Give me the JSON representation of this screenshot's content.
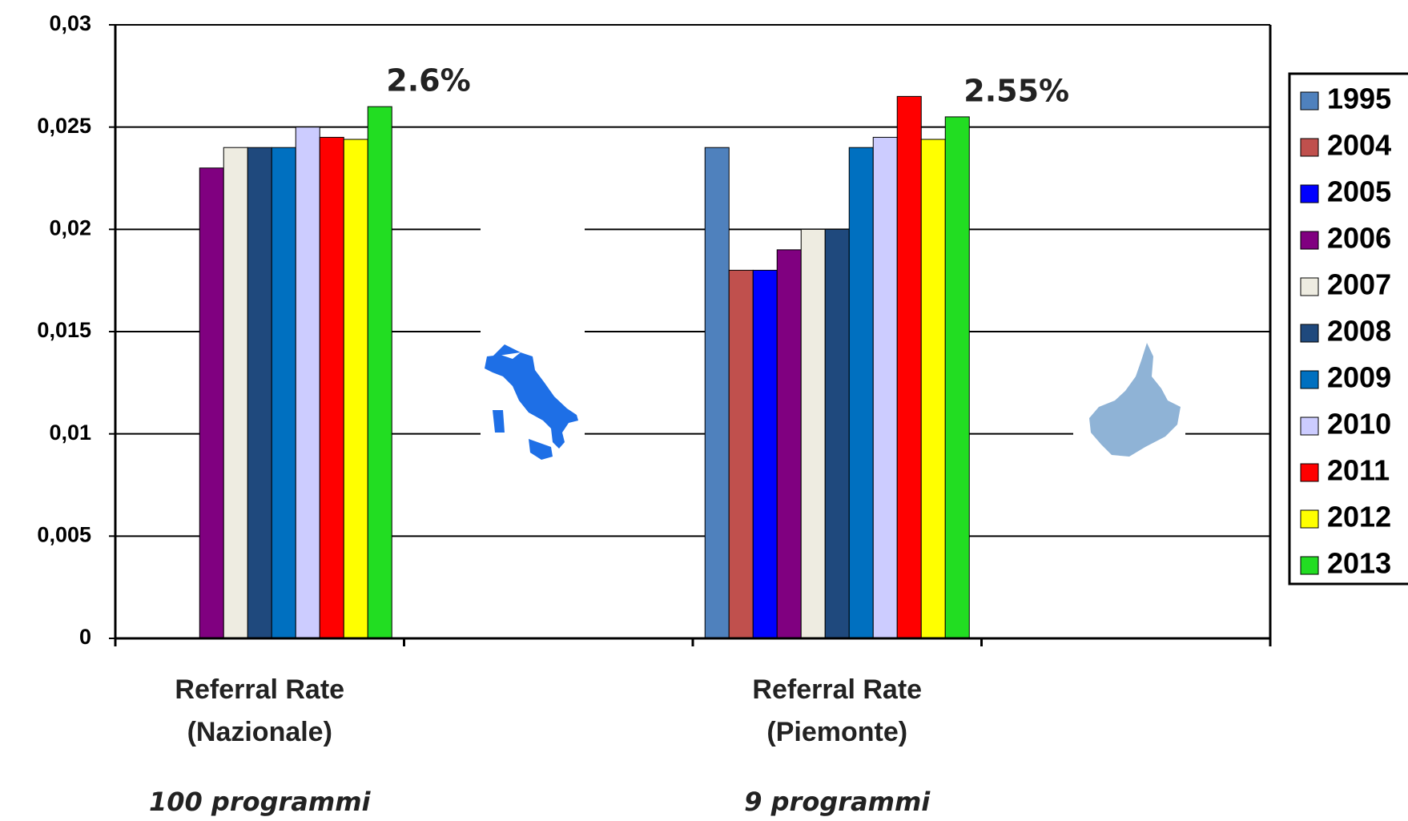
{
  "chart_data": {
    "type": "bar",
    "categories": [
      "Referral Rate\n(Nazionale)",
      null,
      "Referral Rate\n(Piemonte)",
      null
    ],
    "category_notes": [
      "100 programmi",
      null,
      "9 programmi",
      null
    ],
    "ylim": [
      0,
      0.03
    ],
    "yticks": [
      0,
      {
        "value": 0.005,
        "label": "0,005"
      },
      {
        "value": 0.01,
        "label": "0,01"
      },
      {
        "value": 0.015,
        "label": "0,015"
      },
      {
        "value": 0.02,
        "label": "0,02"
      },
      {
        "value": 0.025,
        "label": "0,025"
      },
      {
        "value": 0.03,
        "label": "0,03"
      }
    ],
    "grid": true,
    "legend": "right",
    "series": [
      {
        "name": "1995",
        "color": "#4f81bd",
        "values": [
          null,
          null,
          0.024,
          null
        ]
      },
      {
        "name": "2004",
        "color": "#c0504d",
        "values": [
          null,
          null,
          0.018,
          null
        ]
      },
      {
        "name": "2005",
        "color": "#0000ff",
        "values": [
          null,
          null,
          0.018,
          null
        ]
      },
      {
        "name": "2006",
        "color": "#800080",
        "values": [
          0.023,
          null,
          0.019,
          null
        ]
      },
      {
        "name": "2007",
        "color": "#eeece1",
        "values": [
          0.024,
          null,
          0.02,
          null
        ]
      },
      {
        "name": "2008",
        "color": "#1f497d",
        "values": [
          0.024,
          null,
          0.02,
          null
        ]
      },
      {
        "name": "2009",
        "color": "#0070c0",
        "values": [
          0.024,
          null,
          0.024,
          null
        ]
      },
      {
        "name": "2010",
        "color": "#ccccff",
        "values": [
          0.025,
          null,
          0.0245,
          null
        ]
      },
      {
        "name": "2011",
        "color": "#ff0000",
        "values": [
          0.0245,
          null,
          0.0265,
          null
        ]
      },
      {
        "name": "2012",
        "color": "#ffff00",
        "values": [
          0.0244,
          null,
          0.0244,
          null
        ]
      },
      {
        "name": "2013",
        "color": "#22dd22",
        "values": [
          0.026,
          null,
          0.0255,
          null
        ],
        "value_labels": [
          "2.6%",
          null,
          "2.55%",
          null
        ]
      }
    ]
  }
}
